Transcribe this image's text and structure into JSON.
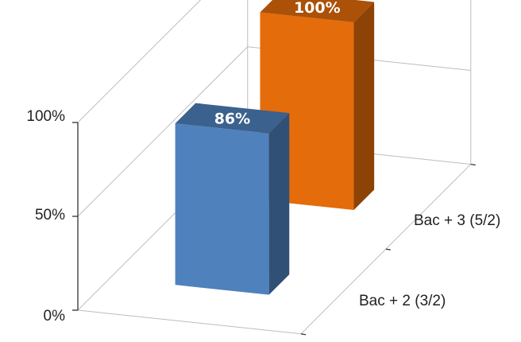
{
  "chart_data": {
    "type": "bar",
    "categories": [
      "Bac + 2 (3/2)",
      "Bac + 3 (5/2)"
    ],
    "values": [
      86,
      100
    ],
    "data_labels": [
      "86%",
      "100%"
    ],
    "y_ticks": [
      "0%",
      "50%",
      "100%"
    ],
    "ylim": [
      0,
      100
    ],
    "colors": [
      "#4f81bd",
      "#e46c0a"
    ],
    "grid": true,
    "projection": "3d"
  }
}
